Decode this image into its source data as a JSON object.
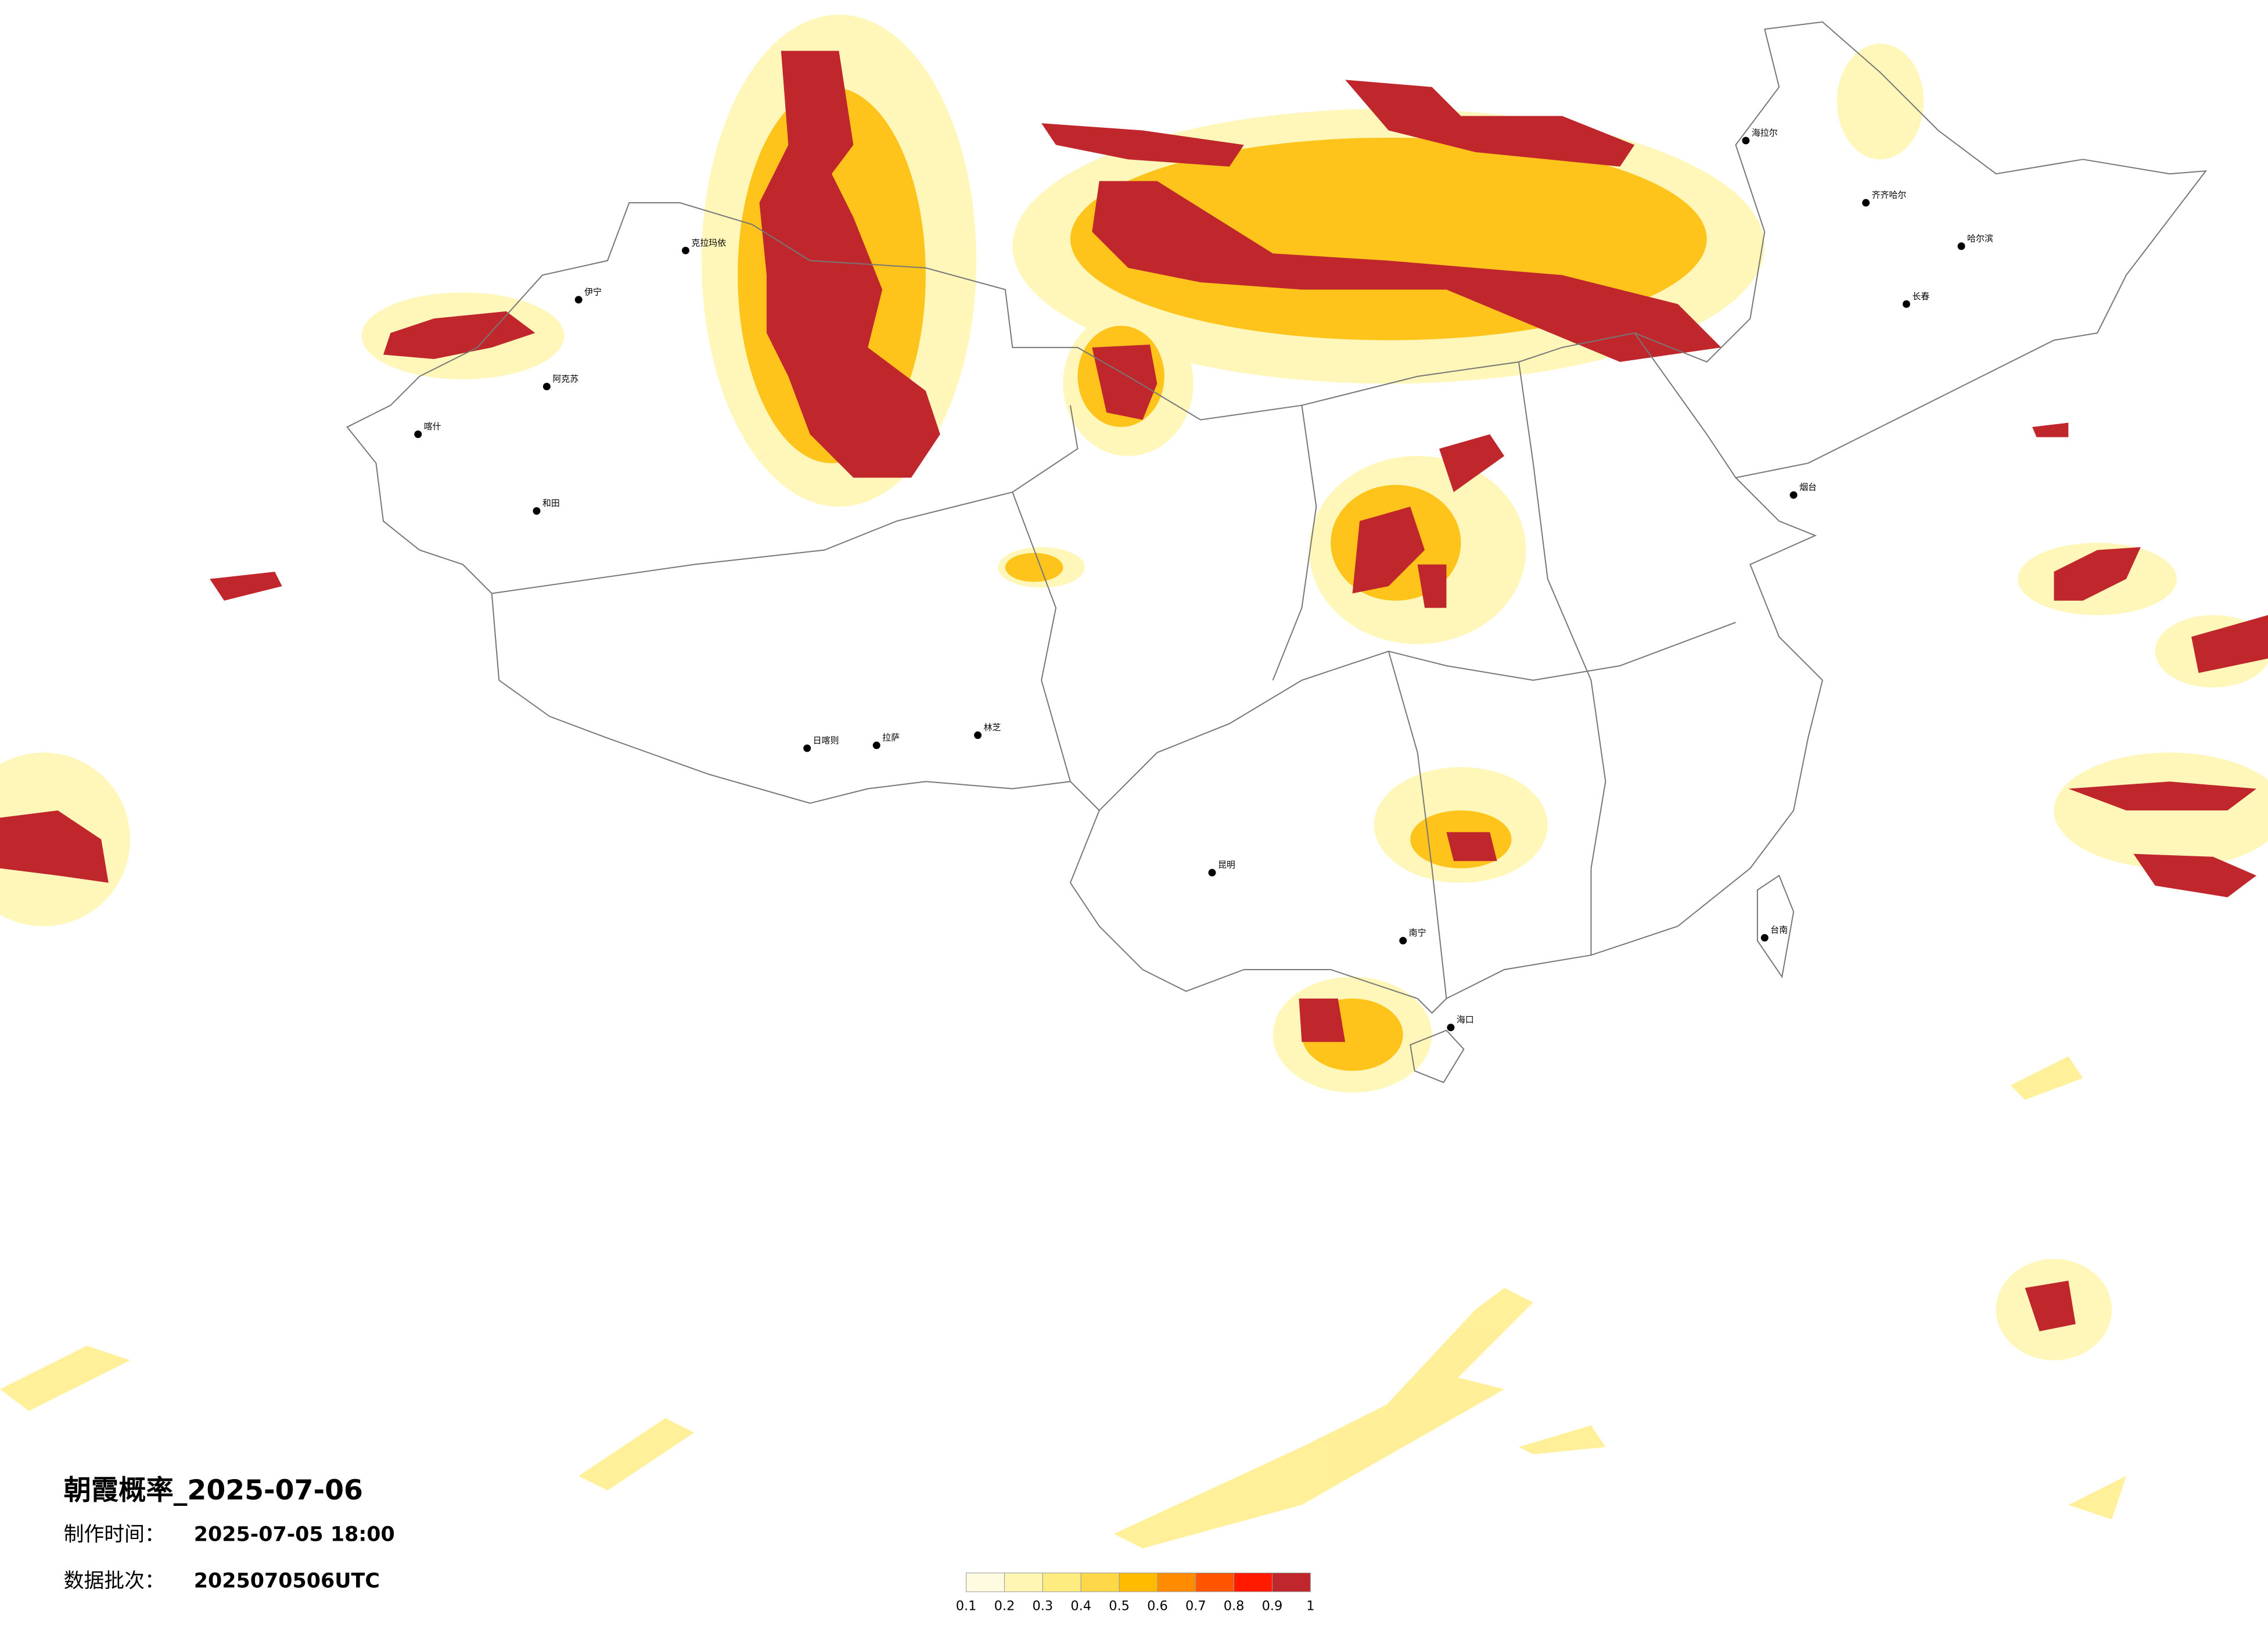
{
  "title": "朝霞概率_2025-07-06",
  "made_time_label": "制作时间：",
  "made_time": "2025-07-05 18:00",
  "batch_label": "数据批次：",
  "batch": "2025070506UTC",
  "colorbar": {
    "ticks": [
      0.1,
      0.2,
      0.3,
      0.4,
      0.5,
      0.6,
      0.7,
      0.8,
      0.9,
      1
    ],
    "colors": [
      "#fffbe0",
      "#fff6b3",
      "#ffec80",
      "#ffd84a",
      "#ffbb00",
      "#ff8c00",
      "#ff5500",
      "#ff1a00",
      "#c0272d"
    ]
  },
  "cities": [
    "克拉玛依",
    "阿克苏",
    "和田",
    "喀什",
    "伊宁",
    "拉萨",
    "日喀则",
    "林芝",
    "哈尔滨",
    "齐齐哈尔",
    "长春",
    "海拉尔",
    "烟台",
    "海口",
    "台南",
    "南宁",
    "昆明"
  ]
}
